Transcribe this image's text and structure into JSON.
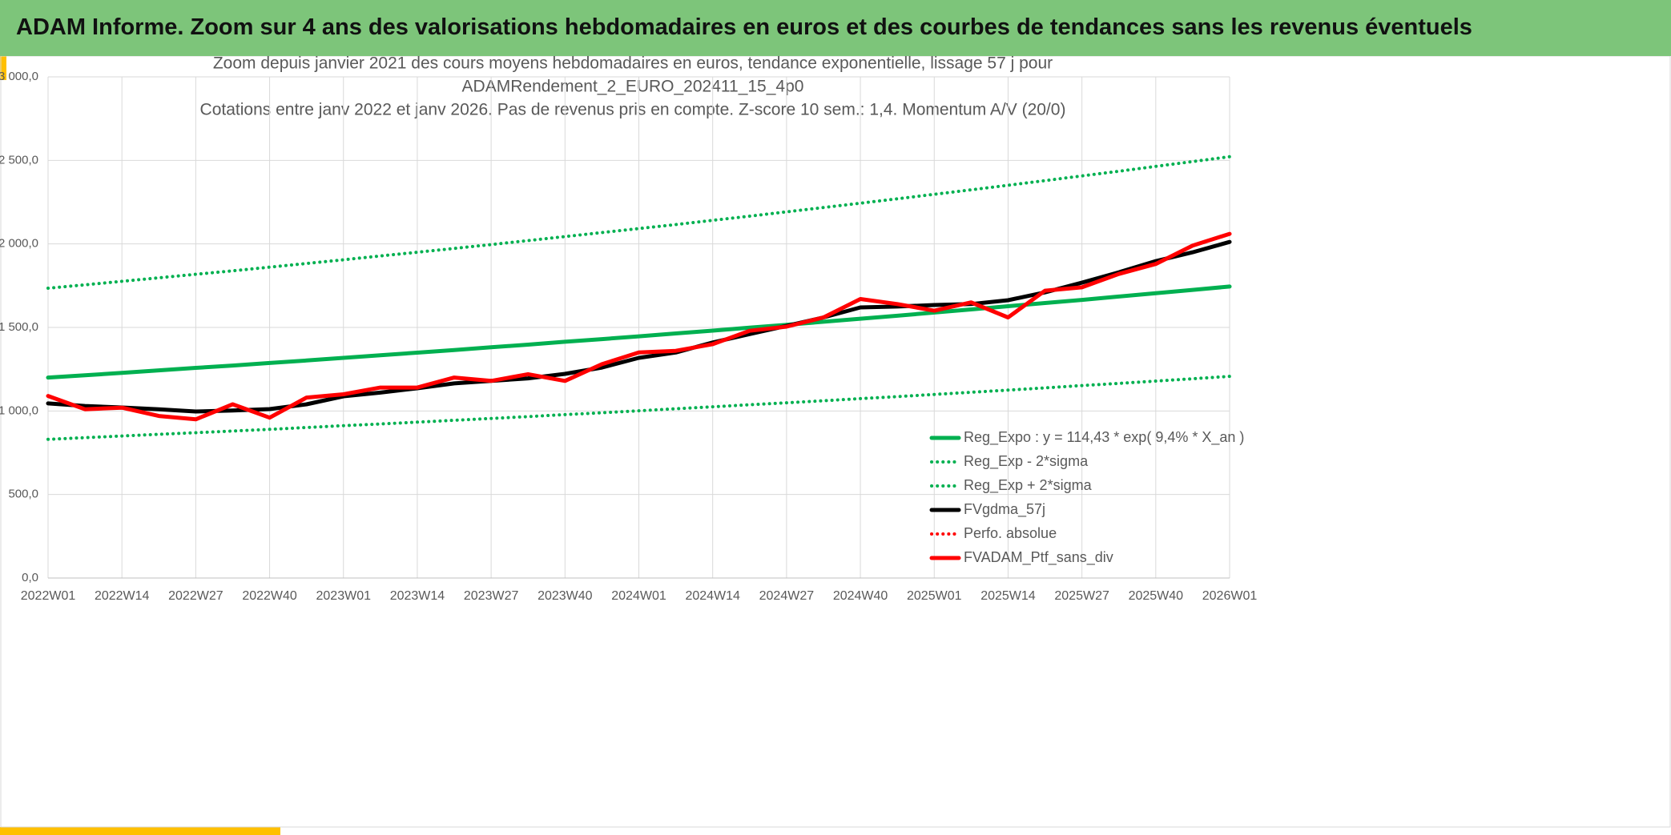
{
  "header": "ADAM Informe. Zoom sur 4 ans des valorisations hebdomadaires en euros et des courbes de tendances sans les revenus éventuels",
  "chart_data": {
    "type": "line",
    "title": [
      "Zoom depuis janvier 2021 des cours moyens hebdomadaires en euros, tendance exponentielle, lissage 57 j pour",
      "ADAMRendement_2_EURO_202411_15_4p0",
      "Cotations entre janv 2022 et janv 2026. Pas de revenus pris en compte. Z-score 10 sem.: 1,4. Momentum A/V (20/0)"
    ],
    "categories": [
      "2022W01",
      null,
      "2022W14",
      null,
      "2022W27",
      null,
      "2022W40",
      null,
      "2023W01",
      null,
      "2023W14",
      null,
      "2023W27",
      null,
      "2023W40",
      null,
      "2024W01",
      null,
      "2024W14",
      null,
      "2024W27",
      null,
      "2024W40",
      null,
      "2025W01",
      null,
      "2025W14",
      null,
      "2025W27",
      null,
      "2025W40",
      null,
      "2026W01"
    ],
    "ylim": [
      0,
      3000
    ],
    "yticks": [
      {
        "value": 0,
        "label": "0,0"
      },
      {
        "value": 500,
        "label": "500,0"
      },
      {
        "value": 1000,
        "label": "1 000,0"
      },
      {
        "value": 1500,
        "label": "1 500,0"
      },
      {
        "value": 2000,
        "label": "2 000,0"
      },
      {
        "value": 2500,
        "label": "2 500,0"
      },
      {
        "value": 3000,
        "label": "3 000,0"
      }
    ],
    "grid": true,
    "legend": "bottom-right",
    "series": [
      {
        "name": "Reg_Expo : y = 114,43 * exp( 9,4% *  X_an )",
        "color": "#00b050",
        "style": "solid",
        "values": [
          1200,
          1214,
          1228,
          1243,
          1258,
          1272,
          1287,
          1302,
          1318,
          1333,
          1349,
          1365,
          1381,
          1397,
          1414,
          1430,
          1447,
          1464,
          1481,
          1499,
          1516,
          1534,
          1552,
          1570,
          1589,
          1608,
          1627,
          1646,
          1665,
          1685,
          1705,
          1725,
          1745
        ]
      },
      {
        "name": "Reg_Exp - 2*sigma",
        "color": "#00b050",
        "style": "dotted",
        "values": [
          830,
          840,
          850,
          860,
          870,
          880,
          890,
          901,
          912,
          922,
          933,
          944,
          955,
          966,
          978,
          989,
          1001,
          1013,
          1025,
          1037,
          1049,
          1061,
          1074,
          1086,
          1099,
          1112,
          1125,
          1138,
          1152,
          1165,
          1179,
          1193,
          1207
        ]
      },
      {
        "name": "Reg_Exp + 2*sigma",
        "color": "#00b050",
        "style": "dotted",
        "values": [
          1735,
          1755,
          1776,
          1797,
          1818,
          1839,
          1861,
          1883,
          1905,
          1928,
          1950,
          1973,
          1996,
          2020,
          2044,
          2068,
          2092,
          2116,
          2141,
          2166,
          2192,
          2218,
          2244,
          2270,
          2297,
          2324,
          2351,
          2379,
          2407,
          2435,
          2464,
          2493,
          2522
        ]
      },
      {
        "name": "FVgdma_57j",
        "color": "#000000",
        "style": "solid",
        "values": [
          1045,
          1030,
          1021,
          1010,
          997,
          1003,
          1011,
          1040,
          1088,
          1110,
          1136,
          1165,
          1180,
          1195,
          1222,
          1260,
          1318,
          1350,
          1410,
          1460,
          1509,
          1560,
          1620,
          1625,
          1634,
          1640,
          1663,
          1710,
          1768,
          1830,
          1897,
          1950,
          2012
        ]
      },
      {
        "name": "Perfo. absolue",
        "color": "#ff0000",
        "style": "dotted",
        "values": [
          null,
          null,
          null,
          null,
          null,
          null,
          null,
          null,
          null,
          null,
          null,
          null,
          null,
          null,
          null,
          null,
          null,
          null,
          null,
          null,
          null,
          null,
          null,
          null,
          null,
          null,
          null,
          null,
          null,
          null,
          null,
          null,
          null
        ]
      },
      {
        "name": "FVADAM_Ptf_sans_div",
        "color": "#ff0000",
        "style": "solid",
        "values": [
          1090,
          1010,
          1020,
          970,
          950,
          1040,
          960,
          1080,
          1100,
          1140,
          1140,
          1200,
          1180,
          1220,
          1180,
          1280,
          1350,
          1360,
          1400,
          1480,
          1505,
          1560,
          1670,
          1640,
          1600,
          1650,
          1560,
          1720,
          1740,
          1820,
          1880,
          1990,
          2060
        ]
      }
    ]
  }
}
